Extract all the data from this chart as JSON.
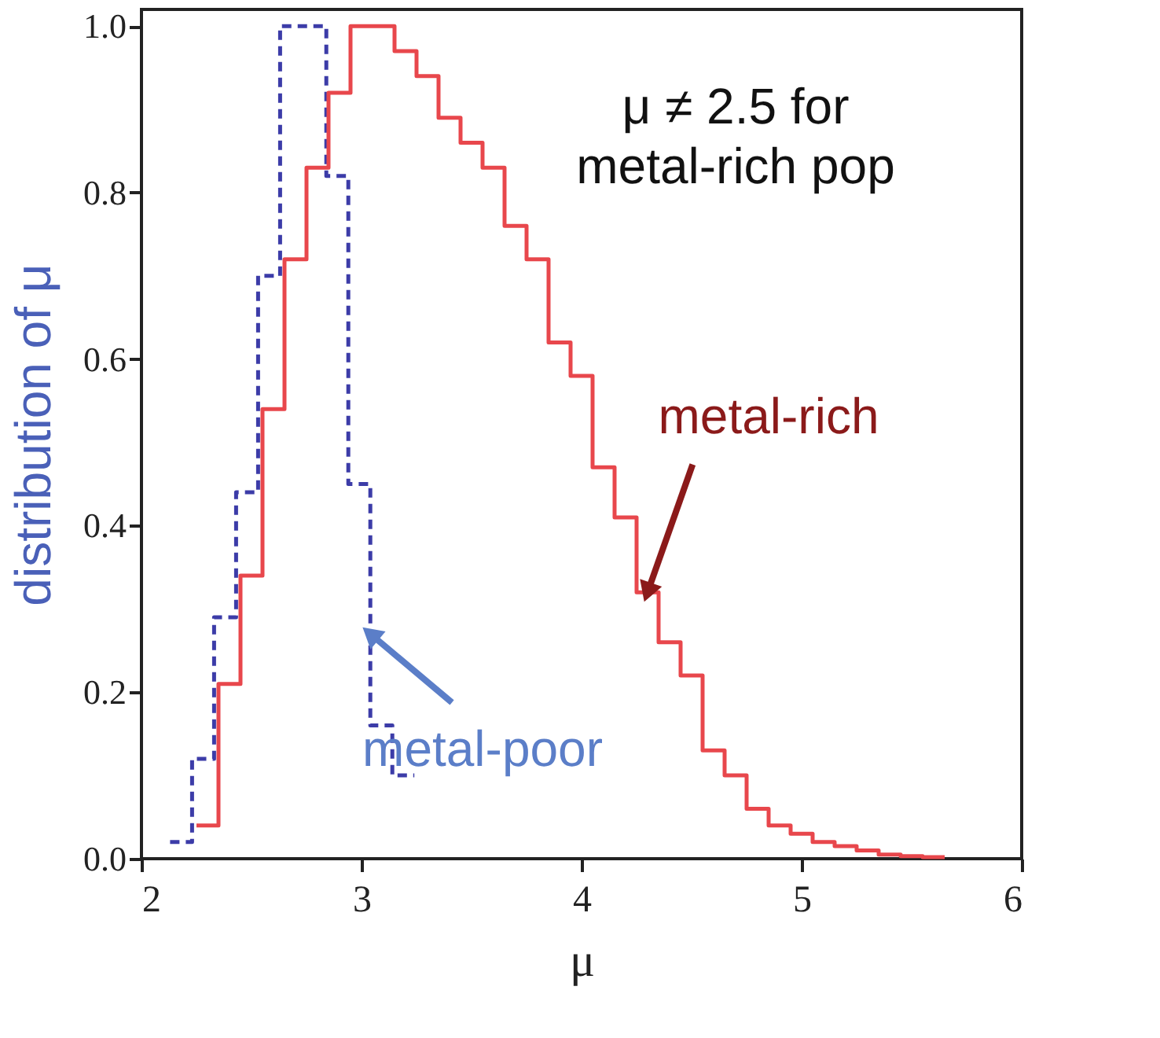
{
  "chart_data": {
    "type": "step",
    "xlabel": "μ",
    "ylabel": "distribution of μ",
    "xlim": [
      2,
      6
    ],
    "xticks": [
      2,
      3,
      4,
      5,
      6
    ],
    "ylim": [
      0,
      1.02
    ],
    "yticks": [
      {
        "value": 0,
        "label": "0.0"
      },
      0.2,
      0.4,
      0.6,
      0.8,
      {
        "value": 1,
        "label": "1.0"
      }
    ],
    "grid": false,
    "series": [
      {
        "color": "#3c3ca8",
        "line_style": "dashed",
        "x": [
          2.13,
          2.23,
          2.33,
          2.43,
          2.53,
          2.63,
          2.73,
          2.84,
          2.94,
          3.04,
          3.14,
          3.24
        ],
        "values": [
          0.02,
          0.12,
          0.29,
          0.44,
          0.7,
          1.0,
          1.0,
          0.82,
          0.45,
          0.16,
          0.1,
          0.1
        ]
      },
      {
        "color": "#e8474c",
        "line_style": "solid",
        "x": [
          2.25,
          2.35,
          2.45,
          2.55,
          2.65,
          2.75,
          2.85,
          2.95,
          3.05,
          3.15,
          3.25,
          3.35,
          3.45,
          3.55,
          3.65,
          3.75,
          3.85,
          3.95,
          4.05,
          4.15,
          4.25,
          4.35,
          4.45,
          4.55,
          4.65,
          4.75,
          4.85,
          4.95,
          5.05,
          5.15,
          5.25,
          5.35,
          5.45,
          5.55,
          5.65
        ],
        "values": [
          0.04,
          0.21,
          0.34,
          0.54,
          0.72,
          0.83,
          0.92,
          1.0,
          1.0,
          0.97,
          0.94,
          0.89,
          0.86,
          0.83,
          0.76,
          0.72,
          0.62,
          0.58,
          0.47,
          0.41,
          0.32,
          0.26,
          0.22,
          0.13,
          0.1,
          0.06,
          0.04,
          0.03,
          0.02,
          0.015,
          0.01,
          0.005,
          0.003,
          0.002,
          0.002
        ]
      }
    ],
    "annotations": [
      "μ ≠ 2.5 for\nmetal-rich pop",
      {
        "text": "metal-rich",
        "x": 4.3,
        "y": 0.32
      },
      {
        "text": "metal-poor",
        "x": 3.04,
        "y": 0.27
      }
    ]
  }
}
